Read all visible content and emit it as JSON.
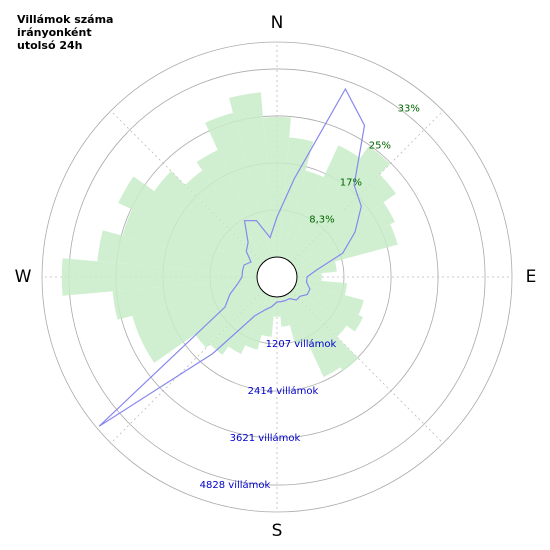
{
  "chart_data": {
    "type": "polar",
    "title": [
      "Villámok száma",
      "irányonként",
      "utolsó 24h"
    ],
    "direction_labels": [
      "N",
      "E",
      "S",
      "W"
    ],
    "x": [
      0,
      10,
      20,
      30,
      40,
      50,
      60,
      70,
      80,
      90,
      100,
      110,
      120,
      130,
      140,
      150,
      160,
      170,
      180,
      190,
      200,
      210,
      220,
      230,
      240,
      250,
      260,
      270,
      280,
      290,
      300,
      310,
      320,
      330,
      340,
      350
    ],
    "series": [
      {
        "color": "#c8ecc8",
        "values": [
          24.8,
          21.3,
          16.0,
          22.2,
          24.8,
          22.2,
          19.5,
          18.6,
          7.1,
          4.4,
          8.9,
          12.4,
          13.3,
          11.5,
          16.8,
          16.0,
          8.9,
          5.3,
          3.5,
          7.1,
          9.8,
          11.5,
          13.3,
          14.2,
          23.0,
          23.0,
          25.7,
          34.6,
          28.4,
          24.8,
          27.5,
          23.0,
          19.5,
          21.3,
          26.6,
          29.3
        ]
      },
      {
        "color": "#8888ee",
        "axis": "y2",
        "values": [
          1027,
          2054,
          4622,
          3980,
          2568,
          2311,
          1798,
          1284,
          514,
          257,
          257,
          385,
          385,
          257,
          257,
          128,
          128,
          128,
          128,
          257,
          385,
          642,
          2054,
          5444,
          1027,
          770,
          514,
          385,
          385,
          385,
          257,
          514,
          642,
          1156,
          1027,
          514
        ]
      }
    ],
    "ylim": [
      0,
      38.1
    ],
    "yticks": [
      {
        "value": 8.33,
        "label": "8,3%"
      },
      {
        "value": 16.67,
        "label": "17%"
      },
      {
        "value": 25,
        "label": "25%"
      },
      {
        "value": 33.33,
        "label": "33%"
      }
    ],
    "y2lim": [
      0,
      5520
    ],
    "y2ticks": [
      {
        "value": 1207,
        "label": "1207 villámok"
      },
      {
        "value": 2414,
        "label": "2414 villámok"
      },
      {
        "value": 3621,
        "label": "3621 villámok"
      },
      {
        "value": 4828,
        "label": "4828 villámok"
      }
    ],
    "grid": true
  }
}
